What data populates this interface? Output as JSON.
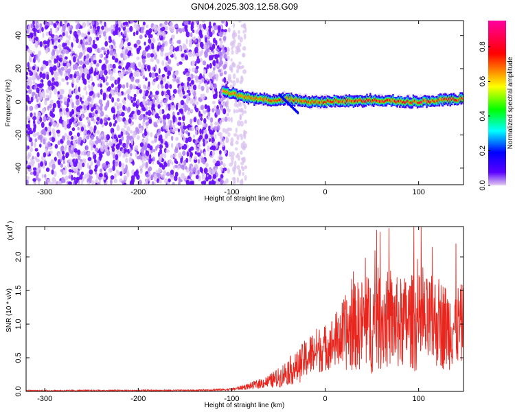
{
  "chart_data": [
    {
      "type": "heatmap",
      "title": "GN04.2025.303.12.58.G09",
      "xlabel": "Height of straight line (km)",
      "ylabel": "Frequency (Hz)",
      "xlim": [
        -320,
        148
      ],
      "ylim": [
        -50,
        49
      ],
      "x_ticks": [
        -300,
        -200,
        -100,
        0,
        100
      ],
      "y_ticks": [
        -40,
        -20,
        0,
        20,
        40
      ],
      "colorbar": {
        "label": "Normalized spectral amplitude",
        "range": [
          0,
          0.95
        ],
        "ticks": [
          0.0,
          0.2,
          0.4,
          0.6,
          0.8
        ],
        "colors": [
          "#e4ccf0",
          "#5a00ff",
          "#0000ff",
          "#00ffff",
          "#00ff00",
          "#ffff00",
          "#ff0000",
          "#ff00a0"
        ]
      },
      "regions": [
        {
          "name": "noise",
          "x_range": [
            -320,
            -105
          ],
          "freq_range": [
            -50,
            49
          ],
          "amplitude_range": [
            0.02,
            0.15
          ]
        },
        {
          "name": "sparse-noise",
          "x_range": [
            -105,
            -85
          ],
          "freq_range": [
            -50,
            49
          ],
          "amplitude_range": [
            0.0,
            0.05
          ]
        },
        {
          "name": "signal-band",
          "x_range": [
            -110,
            148
          ],
          "center_freq_hz": [
            [
              -110,
              7
            ],
            [
              -95,
              4
            ],
            [
              -80,
              2
            ],
            [
              -60,
              1
            ],
            [
              -40,
              2
            ],
            [
              -20,
              0
            ],
            [
              0,
              0
            ],
            [
              50,
              1
            ],
            [
              100,
              0
            ],
            [
              148,
              2
            ]
          ],
          "width_hz": 5,
          "amplitude_range": [
            0.2,
            0.95
          ]
        }
      ]
    },
    {
      "type": "line",
      "xlabel": "Height of straight line (km)",
      "ylabel": "SNR (10 * v/v)",
      "y_multiplier": "(x10^4)",
      "y_multiplier_base": "(x10",
      "y_multiplier_exp": "4",
      "xlim": [
        -320,
        148
      ],
      "ylim": [
        0,
        2.45
      ],
      "x_ticks": [
        -300,
        -200,
        -100,
        0,
        100
      ],
      "y_ticks": [
        "0.0",
        "0.5",
        "1.0",
        "1.5",
        "2.0"
      ],
      "color": "#e8261e",
      "envelope": {
        "x": [
          -320,
          -140,
          -100,
          -80,
          -60,
          -50,
          -40,
          -30,
          -20,
          -10,
          0,
          10,
          20,
          30,
          40,
          50,
          60,
          70,
          80,
          90,
          100,
          110,
          120,
          130,
          148
        ],
        "mean": [
          0.01,
          0.015,
          0.03,
          0.08,
          0.15,
          0.2,
          0.3,
          0.35,
          0.5,
          0.6,
          0.65,
          0.75,
          0.85,
          0.95,
          1.0,
          1.0,
          1.1,
          1.05,
          1.0,
          1.05,
          1.0,
          1.0,
          1.05,
          0.95,
          1.0
        ],
        "spread": [
          0.01,
          0.01,
          0.02,
          0.05,
          0.1,
          0.15,
          0.2,
          0.25,
          0.3,
          0.35,
          0.35,
          0.4,
          0.55,
          0.65,
          0.7,
          0.75,
          0.8,
          0.7,
          0.7,
          0.7,
          0.75,
          0.7,
          0.7,
          0.65,
          0.6
        ]
      },
      "peaks": [
        {
          "x": 55,
          "y": 2.4
        },
        {
          "x": 95,
          "y": 2.45
        },
        {
          "x": 140,
          "y": 2.2
        }
      ]
    }
  ]
}
